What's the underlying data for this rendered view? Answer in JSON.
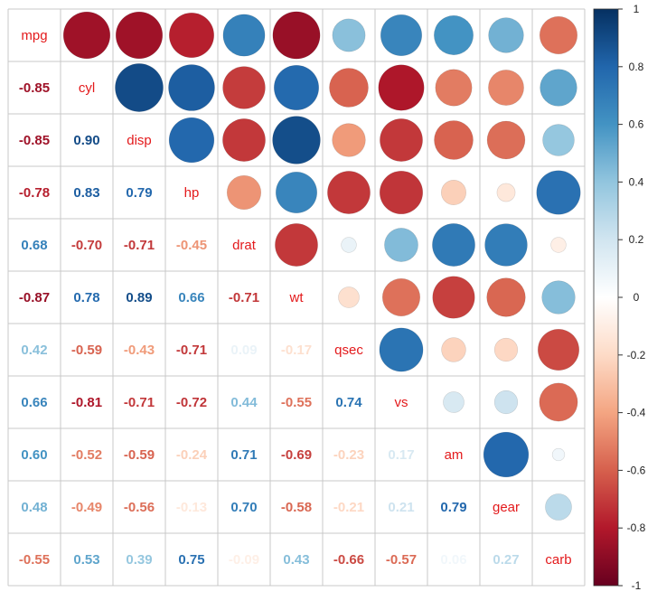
{
  "chart_data": {
    "type": "heatmap",
    "variables": [
      "mpg",
      "cyl",
      "disp",
      "hp",
      "drat",
      "wt",
      "qsec",
      "vs",
      "am",
      "gear",
      "carb"
    ],
    "correlations": [
      [
        1.0,
        -0.85,
        -0.85,
        -0.78,
        0.68,
        -0.87,
        0.42,
        0.66,
        0.6,
        0.48,
        -0.55
      ],
      [
        -0.85,
        1.0,
        0.9,
        0.83,
        -0.7,
        0.78,
        -0.59,
        -0.81,
        -0.52,
        -0.49,
        0.53
      ],
      [
        -0.85,
        0.9,
        1.0,
        0.79,
        -0.71,
        0.89,
        -0.43,
        -0.71,
        -0.59,
        -0.56,
        0.39
      ],
      [
        -0.78,
        0.83,
        0.79,
        1.0,
        -0.45,
        0.66,
        -0.71,
        -0.72,
        -0.24,
        -0.13,
        0.75
      ],
      [
        0.68,
        -0.7,
        -0.71,
        -0.45,
        1.0,
        -0.71,
        0.09,
        0.44,
        0.71,
        0.7,
        -0.09
      ],
      [
        -0.87,
        0.78,
        0.89,
        0.66,
        -0.71,
        1.0,
        -0.17,
        -0.55,
        -0.69,
        -0.58,
        0.43
      ],
      [
        0.42,
        -0.59,
        -0.43,
        -0.71,
        0.09,
        -0.17,
        1.0,
        0.74,
        -0.23,
        -0.21,
        -0.66
      ],
      [
        0.66,
        -0.81,
        -0.71,
        -0.72,
        0.44,
        -0.55,
        0.74,
        1.0,
        0.17,
        0.21,
        -0.57
      ],
      [
        0.6,
        -0.52,
        -0.59,
        -0.24,
        0.71,
        -0.69,
        -0.23,
        0.17,
        1.0,
        0.79,
        0.06
      ],
      [
        0.48,
        -0.49,
        -0.56,
        -0.13,
        0.7,
        -0.58,
        -0.21,
        0.21,
        0.79,
        1.0,
        0.27
      ],
      [
        -0.55,
        0.53,
        0.39,
        0.75,
        -0.09,
        0.43,
        -0.66,
        -0.57,
        0.06,
        0.27,
        1.0
      ]
    ],
    "lower_labels": [
      [],
      [
        "-0.85"
      ],
      [
        "-0.85",
        "0.90"
      ],
      [
        "-0.78",
        "0.83",
        "0.79"
      ],
      [
        "0.68",
        "-0.70",
        "-0.71",
        "-0.45"
      ],
      [
        "-0.87",
        "0.78",
        "0.89",
        "0.66",
        "-0.71"
      ],
      [
        "0.42",
        "-0.59",
        "-0.43",
        "-0.71",
        "0.09",
        "-0.17"
      ],
      [
        "0.66",
        "-0.81",
        "-0.71",
        "-0.72",
        "0.44",
        "-0.55",
        "0.74"
      ],
      [
        "0.60",
        "-0.52",
        "-0.59",
        "-0.24",
        "0.71",
        "-0.69",
        "-0.23",
        "0.17"
      ],
      [
        "0.48",
        "-0.49",
        "-0.56",
        "-0.13",
        "0.70",
        "-0.58",
        "-0.21",
        "0.21",
        "0.79"
      ],
      [
        "-0.55",
        "0.53",
        "0.39",
        "0.75",
        "-0.09",
        "0.43",
        "-0.66",
        "-0.57",
        "0.06",
        "0.27"
      ]
    ],
    "upper_method": "circle",
    "lower_method": "number",
    "diagonal_label_color": "#e31a1c",
    "colorbar": {
      "range": [
        -1,
        1
      ],
      "tick_labels": [
        "1",
        "0.8",
        "0.6",
        "0.4",
        "0.2",
        "0",
        "-0.2",
        "-0.4",
        "-0.6",
        "-0.8",
        "-1"
      ],
      "tick_values": [
        1,
        0.8,
        0.6,
        0.4,
        0.2,
        0,
        -0.2,
        -0.4,
        -0.6,
        -0.8,
        -1
      ],
      "palette": [
        "#67001F",
        "#B2182B",
        "#D6604D",
        "#F4A582",
        "#FDDBC7",
        "#FFFFFF",
        "#D1E5F0",
        "#92C5DE",
        "#4393C3",
        "#2166AC",
        "#053061"
      ]
    },
    "grid": true
  }
}
